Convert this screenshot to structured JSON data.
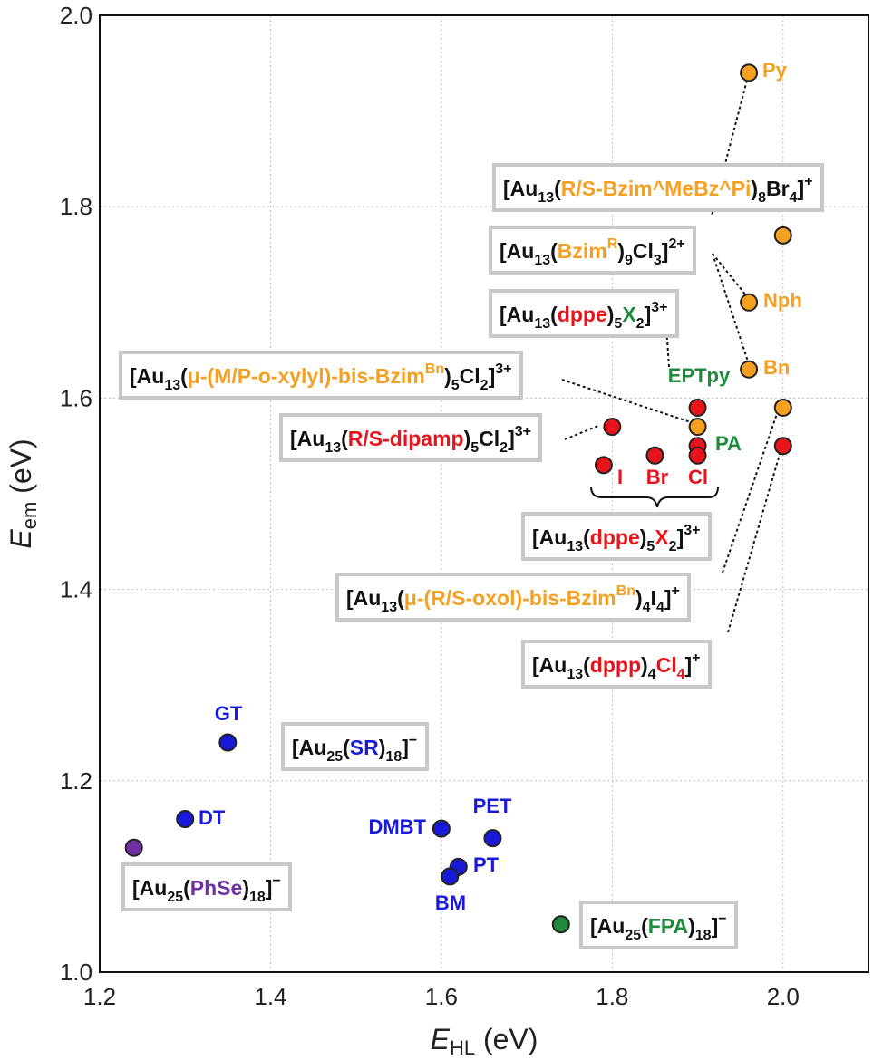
{
  "colors": {
    "blue": "#1a1adb",
    "purple": "#7030a0",
    "green": "#1e8a3c",
    "orange": "#f5a021",
    "red": "#e8141c",
    "black": "#111111"
  },
  "chart_data": {
    "type": "scatter",
    "xlabel_main": "E",
    "xlabel_sub": "HL",
    "xlabel_unit": " (eV)",
    "ylabel_main": "E",
    "ylabel_sub": "em",
    "ylabel_unit": " (eV)",
    "xlim": [
      1.2,
      2.1
    ],
    "ylim": [
      1.0,
      2.0
    ],
    "xticks": [
      "1.2",
      "1.4",
      "1.6",
      "1.8",
      "2.0"
    ],
    "yticks": [
      "1.0",
      "1.2",
      "1.4",
      "1.6",
      "1.8",
      "2.0"
    ],
    "grid": true,
    "points": [
      {
        "x": 1.35,
        "y": 1.24,
        "color": "blue"
      },
      {
        "x": 1.3,
        "y": 1.16,
        "color": "blue"
      },
      {
        "x": 1.24,
        "y": 1.13,
        "color": "purple"
      },
      {
        "x": 1.6,
        "y": 1.15,
        "color": "blue"
      },
      {
        "x": 1.66,
        "y": 1.14,
        "color": "blue"
      },
      {
        "x": 1.62,
        "y": 1.11,
        "color": "blue"
      },
      {
        "x": 1.61,
        "y": 1.1,
        "color": "blue"
      },
      {
        "x": 1.74,
        "y": 1.05,
        "color": "green"
      },
      {
        "x": 1.96,
        "y": 1.94,
        "color": "orange"
      },
      {
        "x": 2.0,
        "y": 1.77,
        "color": "orange"
      },
      {
        "x": 1.96,
        "y": 1.7,
        "color": "orange"
      },
      {
        "x": 1.96,
        "y": 1.63,
        "color": "orange"
      },
      {
        "x": 2.0,
        "y": 1.59,
        "color": "orange"
      },
      {
        "x": 1.9,
        "y": 1.59,
        "color": "red"
      },
      {
        "x": 1.9,
        "y": 1.57,
        "color": "orange"
      },
      {
        "x": 1.9,
        "y": 1.55,
        "color": "red"
      },
      {
        "x": 1.9,
        "y": 1.54,
        "color": "red"
      },
      {
        "x": 1.8,
        "y": 1.57,
        "color": "red"
      },
      {
        "x": 1.79,
        "y": 1.53,
        "color": "red"
      },
      {
        "x": 1.85,
        "y": 1.54,
        "color": "red"
      },
      {
        "x": 2.0,
        "y": 1.55,
        "color": "red"
      }
    ],
    "point_labels": [
      {
        "text": "GT",
        "color": "blue"
      },
      {
        "text": "DT",
        "color": "blue"
      },
      {
        "text": "DMBT",
        "color": "blue"
      },
      {
        "text": "PET",
        "color": "blue"
      },
      {
        "text": "PT",
        "color": "blue"
      },
      {
        "text": "BM",
        "color": "blue"
      },
      {
        "text": "Py",
        "color": "orange"
      },
      {
        "text": "Nph",
        "color": "orange"
      },
      {
        "text": "Bn",
        "color": "orange"
      },
      {
        "text": "EPTpy",
        "color": "green"
      },
      {
        "text": "PA",
        "color": "green"
      },
      {
        "text": "I",
        "color": "red"
      },
      {
        "text": "Br",
        "color": "red"
      },
      {
        "text": "Cl",
        "color": "red"
      }
    ],
    "annotations": [
      {
        "segments": [
          [
            "[Au",
            "black"
          ],
          [
            "13",
            "black",
            "sub"
          ],
          [
            "(",
            "black"
          ],
          [
            "R/S-Bzim^MeBz^Pi",
            "orange"
          ],
          [
            ")",
            "black"
          ],
          [
            "8",
            "black",
            "sub"
          ],
          [
            "Br",
            "black"
          ],
          [
            "4",
            "black",
            "sub"
          ],
          [
            "]",
            "black"
          ],
          [
            "+",
            "black",
            "sup"
          ]
        ]
      },
      {
        "segments": [
          [
            "[Au",
            "black"
          ],
          [
            "13",
            "black",
            "sub"
          ],
          [
            "(",
            "black"
          ],
          [
            "Bzim",
            "orange"
          ],
          [
            "R",
            "orange",
            "sup"
          ],
          [
            ")",
            "black"
          ],
          [
            "9",
            "black",
            "sub"
          ],
          [
            "Cl",
            "black"
          ],
          [
            "3",
            "black",
            "sub"
          ],
          [
            "]",
            "black"
          ],
          [
            "2+",
            "black",
            "sup"
          ]
        ]
      },
      {
        "segments": [
          [
            "[Au",
            "black"
          ],
          [
            "13",
            "black",
            "sub"
          ],
          [
            "(",
            "black"
          ],
          [
            "dppe",
            "red"
          ],
          [
            ")",
            "black"
          ],
          [
            "5",
            "black",
            "sub"
          ],
          [
            "X",
            "green"
          ],
          [
            "2",
            "black",
            "sub"
          ],
          [
            "]",
            "black"
          ],
          [
            "3+",
            "black",
            "sup"
          ]
        ]
      },
      {
        "segments": [
          [
            "[Au",
            "black"
          ],
          [
            "13",
            "black",
            "sub"
          ],
          [
            "(",
            "black"
          ],
          [
            "μ-(M/P-o-xylyl)-bis-Bzim",
            "orange"
          ],
          [
            "Bn",
            "orange",
            "sup"
          ],
          [
            ")",
            "black"
          ],
          [
            "5",
            "black",
            "sub"
          ],
          [
            "Cl",
            "black"
          ],
          [
            "2",
            "black",
            "sub"
          ],
          [
            "]",
            "black"
          ],
          [
            "3+",
            "black",
            "sup"
          ]
        ]
      },
      {
        "segments": [
          [
            "[Au",
            "black"
          ],
          [
            "13",
            "black",
            "sub"
          ],
          [
            "(",
            "black"
          ],
          [
            "R/S-dipamp",
            "red"
          ],
          [
            ")",
            "black"
          ],
          [
            "5",
            "black",
            "sub"
          ],
          [
            "Cl",
            "black"
          ],
          [
            "2",
            "black",
            "sub"
          ],
          [
            "]",
            "black"
          ],
          [
            "3+",
            "black",
            "sup"
          ]
        ]
      },
      {
        "segments": [
          [
            "[Au",
            "black"
          ],
          [
            "13",
            "black",
            "sub"
          ],
          [
            "(",
            "black"
          ],
          [
            "dppe",
            "red"
          ],
          [
            ")",
            "black"
          ],
          [
            "5",
            "black",
            "sub"
          ],
          [
            "X",
            "red"
          ],
          [
            "2",
            "black",
            "sub"
          ],
          [
            "]",
            "black"
          ],
          [
            "3+",
            "black",
            "sup"
          ]
        ]
      },
      {
        "segments": [
          [
            "[Au",
            "black"
          ],
          [
            "13",
            "black",
            "sub"
          ],
          [
            "(",
            "black"
          ],
          [
            "μ-(R/S-oxol)-bis-Bzim",
            "orange"
          ],
          [
            "Bn",
            "orange",
            "sup"
          ],
          [
            ")",
            "black"
          ],
          [
            "4",
            "black",
            "sub"
          ],
          [
            "I",
            "black"
          ],
          [
            "4",
            "black",
            "sub"
          ],
          [
            "]",
            "black"
          ],
          [
            "+",
            "black",
            "sup"
          ]
        ]
      },
      {
        "segments": [
          [
            "[Au",
            "black"
          ],
          [
            "13",
            "black",
            "sub"
          ],
          [
            "(",
            "black"
          ],
          [
            "dppp",
            "red"
          ],
          [
            ")",
            "black"
          ],
          [
            "4",
            "black",
            "sub"
          ],
          [
            "Cl",
            "red"
          ],
          [
            "4",
            "red",
            "sub"
          ],
          [
            "]",
            "black"
          ],
          [
            "+",
            "black",
            "sup"
          ]
        ]
      },
      {
        "segments": [
          [
            "[Au",
            "black"
          ],
          [
            "25",
            "black",
            "sub"
          ],
          [
            "(",
            "black"
          ],
          [
            "SR",
            "blue"
          ],
          [
            ")",
            "black"
          ],
          [
            "18",
            "black",
            "sub"
          ],
          [
            "]",
            "black"
          ],
          [
            "−",
            "black",
            "sup"
          ]
        ]
      },
      {
        "segments": [
          [
            "[Au",
            "black"
          ],
          [
            "25",
            "black",
            "sub"
          ],
          [
            "(",
            "black"
          ],
          [
            "PhSe",
            "purple"
          ],
          [
            ")",
            "black"
          ],
          [
            "18",
            "black",
            "sub"
          ],
          [
            "]",
            "black"
          ],
          [
            "−",
            "black",
            "sup"
          ]
        ]
      },
      {
        "segments": [
          [
            "[Au",
            "black"
          ],
          [
            "25",
            "black",
            "sub"
          ],
          [
            "(",
            "black"
          ],
          [
            "FPA",
            "green"
          ],
          [
            ")",
            "black"
          ],
          [
            "18",
            "black",
            "sub"
          ],
          [
            "]",
            "black"
          ],
          [
            "−",
            "black",
            "sup"
          ]
        ]
      }
    ]
  }
}
